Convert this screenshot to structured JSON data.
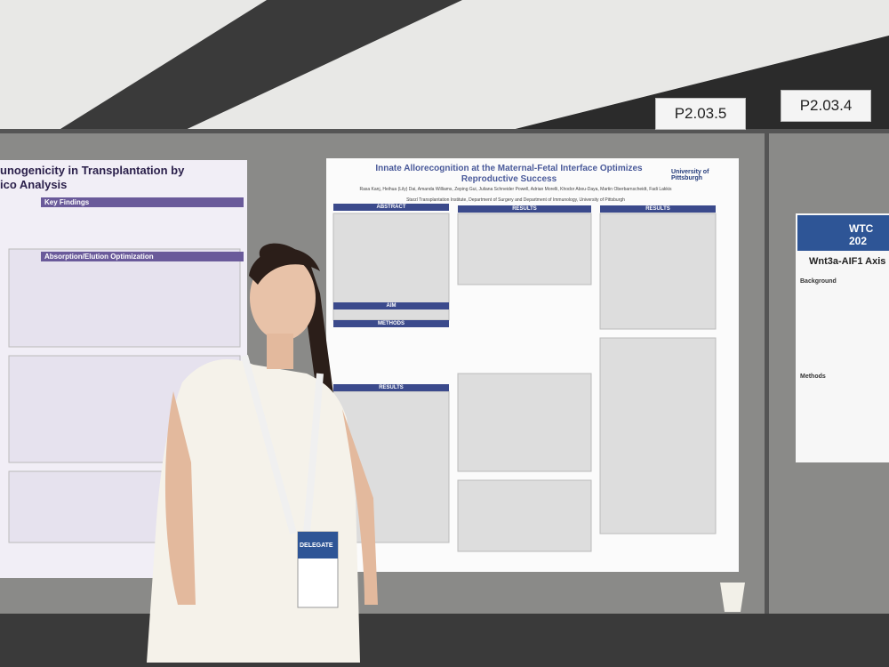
{
  "signs": [
    "P2.03.5",
    "P2.03.4"
  ],
  "center_poster": {
    "title": "Innate Allorecognition at the Maternal-Fetal Interface Optimizes Reproductive Success",
    "authors": "Rasa Kanj, Heihua (Lily) Dai, Amanda Williams, Zeping Gui, Juliana Schneider Powell, Adrian Morelli, Khodor Abou-Daya, Martin Oberbarnscheidt, Fadi Lakkis",
    "affiliation": "Starzl Transplantation Institute, Department of Surgery and Department of Immunology, University of Pittsburgh",
    "logo": "University of Pittsburgh",
    "sections": [
      "ABSTRACT",
      "RESULTS",
      "RESULTS",
      "AIM",
      "METHODS",
      "RESULTS"
    ]
  },
  "left_poster": {
    "title_line1": "unogenicity in Transplantation by",
    "title_line2": "ico Analysis",
    "sections": [
      "Key Findings",
      "Absorption/Elution Optimization"
    ]
  },
  "right_poster": {
    "banner": "WTC 202",
    "title": "Wnt3a-AIF1 Axis",
    "sections": [
      "Background",
      "Methods"
    ]
  },
  "badge": "DELEGATE"
}
